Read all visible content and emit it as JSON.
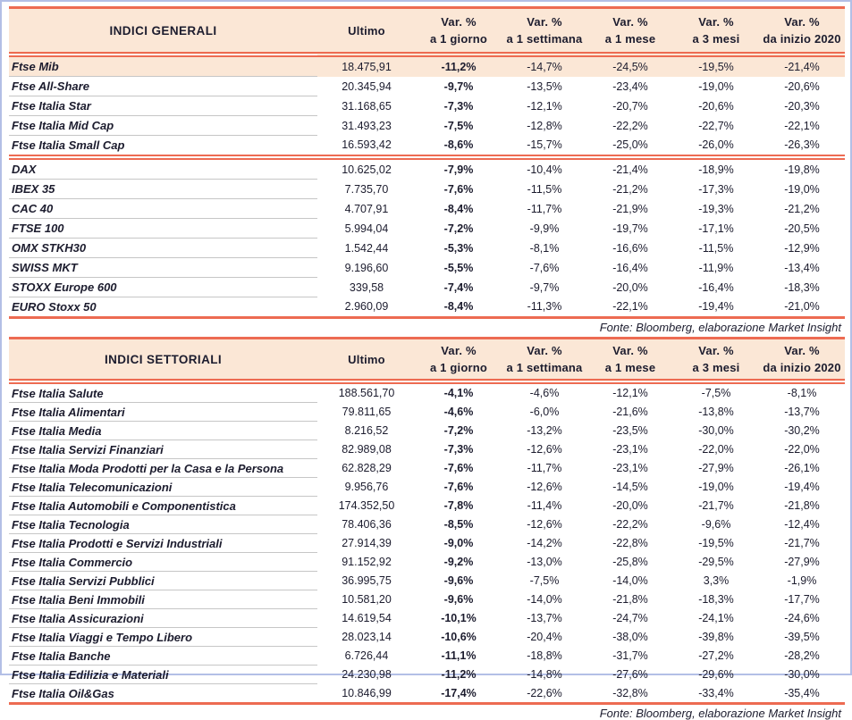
{
  "colors": {
    "accent_line": "#ed6b52",
    "header_background": "#fbe7d6",
    "highlight_row_background": "#fbe7d6",
    "row_separator": "#c6c6c6",
    "text": "#1c1c2e",
    "page_border": "#b3bfe6"
  },
  "columns": {
    "ultimo": "Ultimo",
    "var_label": "Var. %",
    "periods": [
      "a 1 giorno",
      "a 1 settimana",
      "a 1 mese",
      "a 3 mesi",
      "da inizio 2020"
    ]
  },
  "source_note": "Fonte: Bloomberg, elaborazione Market Insight",
  "tables": [
    {
      "title": "INDICI GENERALI",
      "groups": [
        {
          "rows": [
            {
              "name": "Ftse Mib",
              "values": [
                "18.475,91",
                "-11,2%",
                "-14,7%",
                "-24,5%",
                "-19,5%",
                "-21,4%"
              ],
              "highlight": true
            },
            {
              "name": "Ftse All-Share",
              "values": [
                "20.345,94",
                "-9,7%",
                "-13,5%",
                "-23,4%",
                "-19,0%",
                "-20,6%"
              ]
            },
            {
              "name": "Ftse Italia Star",
              "values": [
                "31.168,65",
                "-7,3%",
                "-12,1%",
                "-20,7%",
                "-20,6%",
                "-20,3%"
              ]
            },
            {
              "name": "Ftse Italia Mid Cap",
              "values": [
                "31.493,23",
                "-7,5%",
                "-12,8%",
                "-22,2%",
                "-22,7%",
                "-22,1%"
              ]
            },
            {
              "name": "Ftse Italia Small Cap",
              "values": [
                "16.593,42",
                "-8,6%",
                "-15,7%",
                "-25,0%",
                "-26,0%",
                "-26,3%"
              ]
            }
          ]
        },
        {
          "rows": [
            {
              "name": "DAX",
              "values": [
                "10.625,02",
                "-7,9%",
                "-10,4%",
                "-21,4%",
                "-18,9%",
                "-19,8%"
              ]
            },
            {
              "name": "IBEX 35",
              "values": [
                "7.735,70",
                "-7,6%",
                "-11,5%",
                "-21,2%",
                "-17,3%",
                "-19,0%"
              ]
            },
            {
              "name": "CAC 40",
              "values": [
                "4.707,91",
                "-8,4%",
                "-11,7%",
                "-21,9%",
                "-19,3%",
                "-21,2%"
              ]
            },
            {
              "name": "FTSE 100",
              "values": [
                "5.994,04",
                "-7,2%",
                "-9,9%",
                "-19,7%",
                "-17,1%",
                "-20,5%"
              ]
            },
            {
              "name": "OMX STKH30",
              "values": [
                "1.542,44",
                "-5,3%",
                "-8,1%",
                "-16,6%",
                "-11,5%",
                "-12,9%"
              ]
            },
            {
              "name": "SWISS MKT",
              "values": [
                "9.196,60",
                "-5,5%",
                "-7,6%",
                "-16,4%",
                "-11,9%",
                "-13,4%"
              ]
            },
            {
              "name": "STOXX Europe 600",
              "values": [
                "339,58",
                "-7,4%",
                "-9,7%",
                "-20,0%",
                "-16,4%",
                "-18,3%"
              ]
            },
            {
              "name": "EURO Stoxx 50",
              "values": [
                "2.960,09",
                "-8,4%",
                "-11,3%",
                "-22,1%",
                "-19,4%",
                "-21,0%"
              ]
            }
          ]
        }
      ]
    },
    {
      "title": "INDICI SETTORIALI",
      "groups": [
        {
          "rows": [
            {
              "name": "Ftse Italia Salute",
              "values": [
                "188.561,70",
                "-4,1%",
                "-4,6%",
                "-12,1%",
                "-7,5%",
                "-8,1%"
              ]
            },
            {
              "name": "Ftse Italia Alimentari",
              "values": [
                "79.811,65",
                "-4,6%",
                "-6,0%",
                "-21,6%",
                "-13,8%",
                "-13,7%"
              ]
            },
            {
              "name": "Ftse Italia Media",
              "values": [
                "8.216,52",
                "-7,2%",
                "-13,2%",
                "-23,5%",
                "-30,0%",
                "-30,2%"
              ]
            },
            {
              "name": "Ftse Italia Servizi Finanziari",
              "values": [
                "82.989,08",
                "-7,3%",
                "-12,6%",
                "-23,1%",
                "-22,0%",
                "-22,0%"
              ]
            },
            {
              "name": "Ftse Italia Moda Prodotti per la Casa e la Persona",
              "values": [
                "62.828,29",
                "-7,6%",
                "-11,7%",
                "-23,1%",
                "-27,9%",
                "-26,1%"
              ]
            },
            {
              "name": "Ftse Italia Telecomunicazioni",
              "values": [
                "9.956,76",
                "-7,6%",
                "-12,6%",
                "-14,5%",
                "-19,0%",
                "-19,4%"
              ]
            },
            {
              "name": "Ftse Italia Automobili e Componentistica",
              "values": [
                "174.352,50",
                "-7,8%",
                "-11,4%",
                "-20,0%",
                "-21,7%",
                "-21,8%"
              ]
            },
            {
              "name": "Ftse Italia Tecnologia",
              "values": [
                "78.406,36",
                "-8,5%",
                "-12,6%",
                "-22,2%",
                "-9,6%",
                "-12,4%"
              ]
            },
            {
              "name": "Ftse Italia Prodotti e Servizi Industriali",
              "values": [
                "27.914,39",
                "-9,0%",
                "-14,2%",
                "-22,8%",
                "-19,5%",
                "-21,7%"
              ]
            },
            {
              "name": "Ftse Italia Commercio",
              "values": [
                "91.152,92",
                "-9,2%",
                "-13,0%",
                "-25,8%",
                "-29,5%",
                "-27,9%"
              ]
            },
            {
              "name": "Ftse Italia Servizi Pubblici",
              "values": [
                "36.995,75",
                "-9,6%",
                "-7,5%",
                "-14,0%",
                "3,3%",
                "-1,9%"
              ]
            },
            {
              "name": "Ftse Italia Beni Immobili",
              "values": [
                "10.581,20",
                "-9,6%",
                "-14,0%",
                "-21,8%",
                "-18,3%",
                "-17,7%"
              ]
            },
            {
              "name": "Ftse Italia Assicurazioni",
              "values": [
                "14.619,54",
                "-10,1%",
                "-13,7%",
                "-24,7%",
                "-24,1%",
                "-24,6%"
              ]
            },
            {
              "name": "Ftse Italia Viaggi e Tempo Libero",
              "values": [
                "28.023,14",
                "-10,6%",
                "-20,4%",
                "-38,0%",
                "-39,8%",
                "-39,5%"
              ]
            },
            {
              "name": "Ftse Italia Banche",
              "values": [
                "6.726,44",
                "-11,1%",
                "-18,8%",
                "-31,7%",
                "-27,2%",
                "-28,2%"
              ]
            },
            {
              "name": "Ftse Italia Edilizia e Materiali",
              "values": [
                "24.230,98",
                "-11,2%",
                "-14,8%",
                "-27,6%",
                "-29,6%",
                "-30,0%"
              ]
            },
            {
              "name": "Ftse Italia Oil&Gas",
              "values": [
                "10.846,99",
                "-17,4%",
                "-22,6%",
                "-32,8%",
                "-33,4%",
                "-35,4%"
              ]
            }
          ]
        }
      ]
    }
  ]
}
